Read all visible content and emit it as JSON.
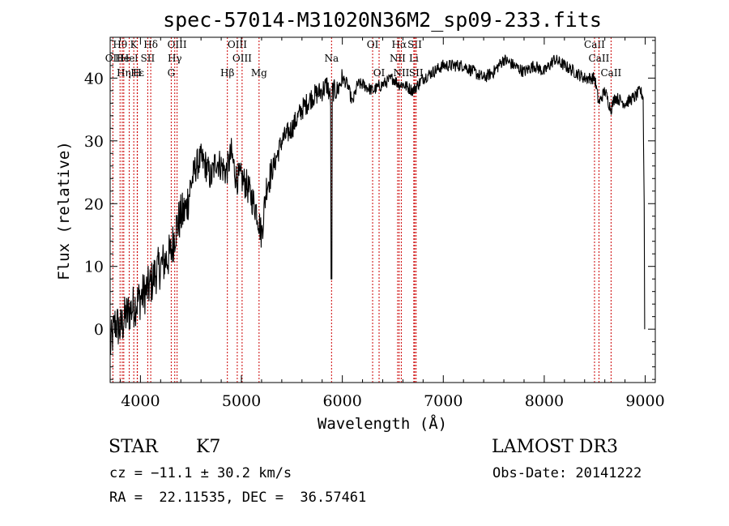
{
  "chart_data": {
    "type": "line",
    "title": "spec-57014-M31020N36M2_sp09-233.fits",
    "xlabel": "Wavelength (Å)",
    "ylabel": "Flux (relative)",
    "xlim": [
      3700,
      9100
    ],
    "ylim": [
      -8.5,
      46.5
    ],
    "x_ticks": [
      4000,
      5000,
      6000,
      7000,
      8000,
      9000
    ],
    "y_ticks": [
      0,
      10,
      20,
      30,
      40
    ],
    "series": [
      {
        "name": "flux",
        "x": [
          3700,
          3750,
          3800,
          3850,
          3900,
          3950,
          4000,
          4050,
          4100,
          4150,
          4200,
          4250,
          4300,
          4350,
          4400,
          4450,
          4500,
          4550,
          4600,
          4650,
          4700,
          4750,
          4800,
          4850,
          4900,
          4950,
          5000,
          5050,
          5100,
          5150,
          5200,
          5250,
          5300,
          5400,
          5500,
          5600,
          5700,
          5800,
          5850,
          5890,
          5895,
          5900,
          5950,
          6000,
          6050,
          6100,
          6150,
          6200,
          6300,
          6400,
          6500,
          6560,
          6600,
          6700,
          6800,
          6900,
          7000,
          7100,
          7200,
          7300,
          7400,
          7500,
          7600,
          7700,
          7800,
          7900,
          8000,
          8100,
          8200,
          8300,
          8400,
          8500,
          8540,
          8600,
          8660,
          8700,
          8800,
          8900,
          8950,
          8980,
          9000
        ],
        "values": [
          -3,
          1,
          0,
          2,
          3,
          4,
          5,
          6,
          7,
          9,
          10,
          11,
          12,
          16,
          18,
          19,
          23,
          26,
          27,
          26,
          24,
          27,
          26,
          25,
          28,
          24,
          24,
          23,
          21,
          19,
          15,
          23,
          25,
          30,
          32,
          35,
          37,
          38,
          39,
          36,
          8,
          38,
          38,
          40,
          39,
          36,
          39,
          39,
          38,
          39,
          40,
          39,
          39,
          38,
          40,
          41,
          42,
          42,
          42,
          41,
          40,
          41,
          43,
          42,
          41,
          42,
          41,
          43,
          42,
          41,
          40,
          40,
          36,
          38,
          35,
          37,
          36,
          37,
          38,
          37,
          0
        ]
      }
    ],
    "spectral_lines": [
      {
        "label": "Hθ",
        "x": 3798,
        "row": 0
      },
      {
        "label": "K",
        "x": 3934,
        "row": 0
      },
      {
        "label": "Hδ",
        "x": 4102,
        "row": 0
      },
      {
        "label": "OIII",
        "x": 4363,
        "row": 0
      },
      {
        "label": "OIII",
        "x": 4959,
        "row": 0
      },
      {
        "label": "OI",
        "x": 6300,
        "row": 0
      },
      {
        "label": "Hα",
        "x": 6563,
        "row": 0
      },
      {
        "label": "SII",
        "x": 6717,
        "row": 0
      },
      {
        "label": "CaII",
        "x": 8498,
        "row": 0
      },
      {
        "label": "OII",
        "x": 3727,
        "row": 1
      },
      {
        "label": "He",
        "x": 3820,
        "row": 1
      },
      {
        "label": "Hel",
        "x": 3889,
        "row": 1
      },
      {
        "label": "SII",
        "x": 4072,
        "row": 1
      },
      {
        "label": "Hγ",
        "x": 4340,
        "row": 1
      },
      {
        "label": "OIII",
        "x": 5007,
        "row": 1
      },
      {
        "label": "NII",
        "x": 6548,
        "row": 1
      },
      {
        "label": "Li",
        "x": 6708,
        "row": 1
      },
      {
        "label": "CaII",
        "x": 8542,
        "row": 1
      },
      {
        "label": "Hη",
        "x": 3835,
        "row": 2
      },
      {
        "label": "Hε",
        "x": 3970,
        "row": 2
      },
      {
        "label": "H",
        "x": 3968,
        "row": 2
      },
      {
        "label": "G",
        "x": 4305,
        "row": 2
      },
      {
        "label": "Hβ",
        "x": 4861,
        "row": 2
      },
      {
        "label": "Mg",
        "x": 5175,
        "row": 2
      },
      {
        "label": "Na",
        "x": 5893,
        "row": 1
      },
      {
        "label": "OI",
        "x": 6364,
        "row": 2
      },
      {
        "label": "NII",
        "x": 6584,
        "row": 2
      },
      {
        "label": "SII",
        "x": 6731,
        "row": 2
      },
      {
        "label": "CaII",
        "x": 8662,
        "row": 2
      }
    ]
  },
  "info": {
    "object_class": "STAR",
    "subclass": "K7",
    "survey": "LAMOST DR3",
    "redshift": "cz = −11.1 ± 30.2 km/s",
    "obs_date": "Obs-Date: 20141222",
    "coords": "RA =  22.11535, DEC =  36.57461"
  },
  "colors": {
    "line": "#000000",
    "marker": "#cc0000",
    "axes": "#000000"
  }
}
